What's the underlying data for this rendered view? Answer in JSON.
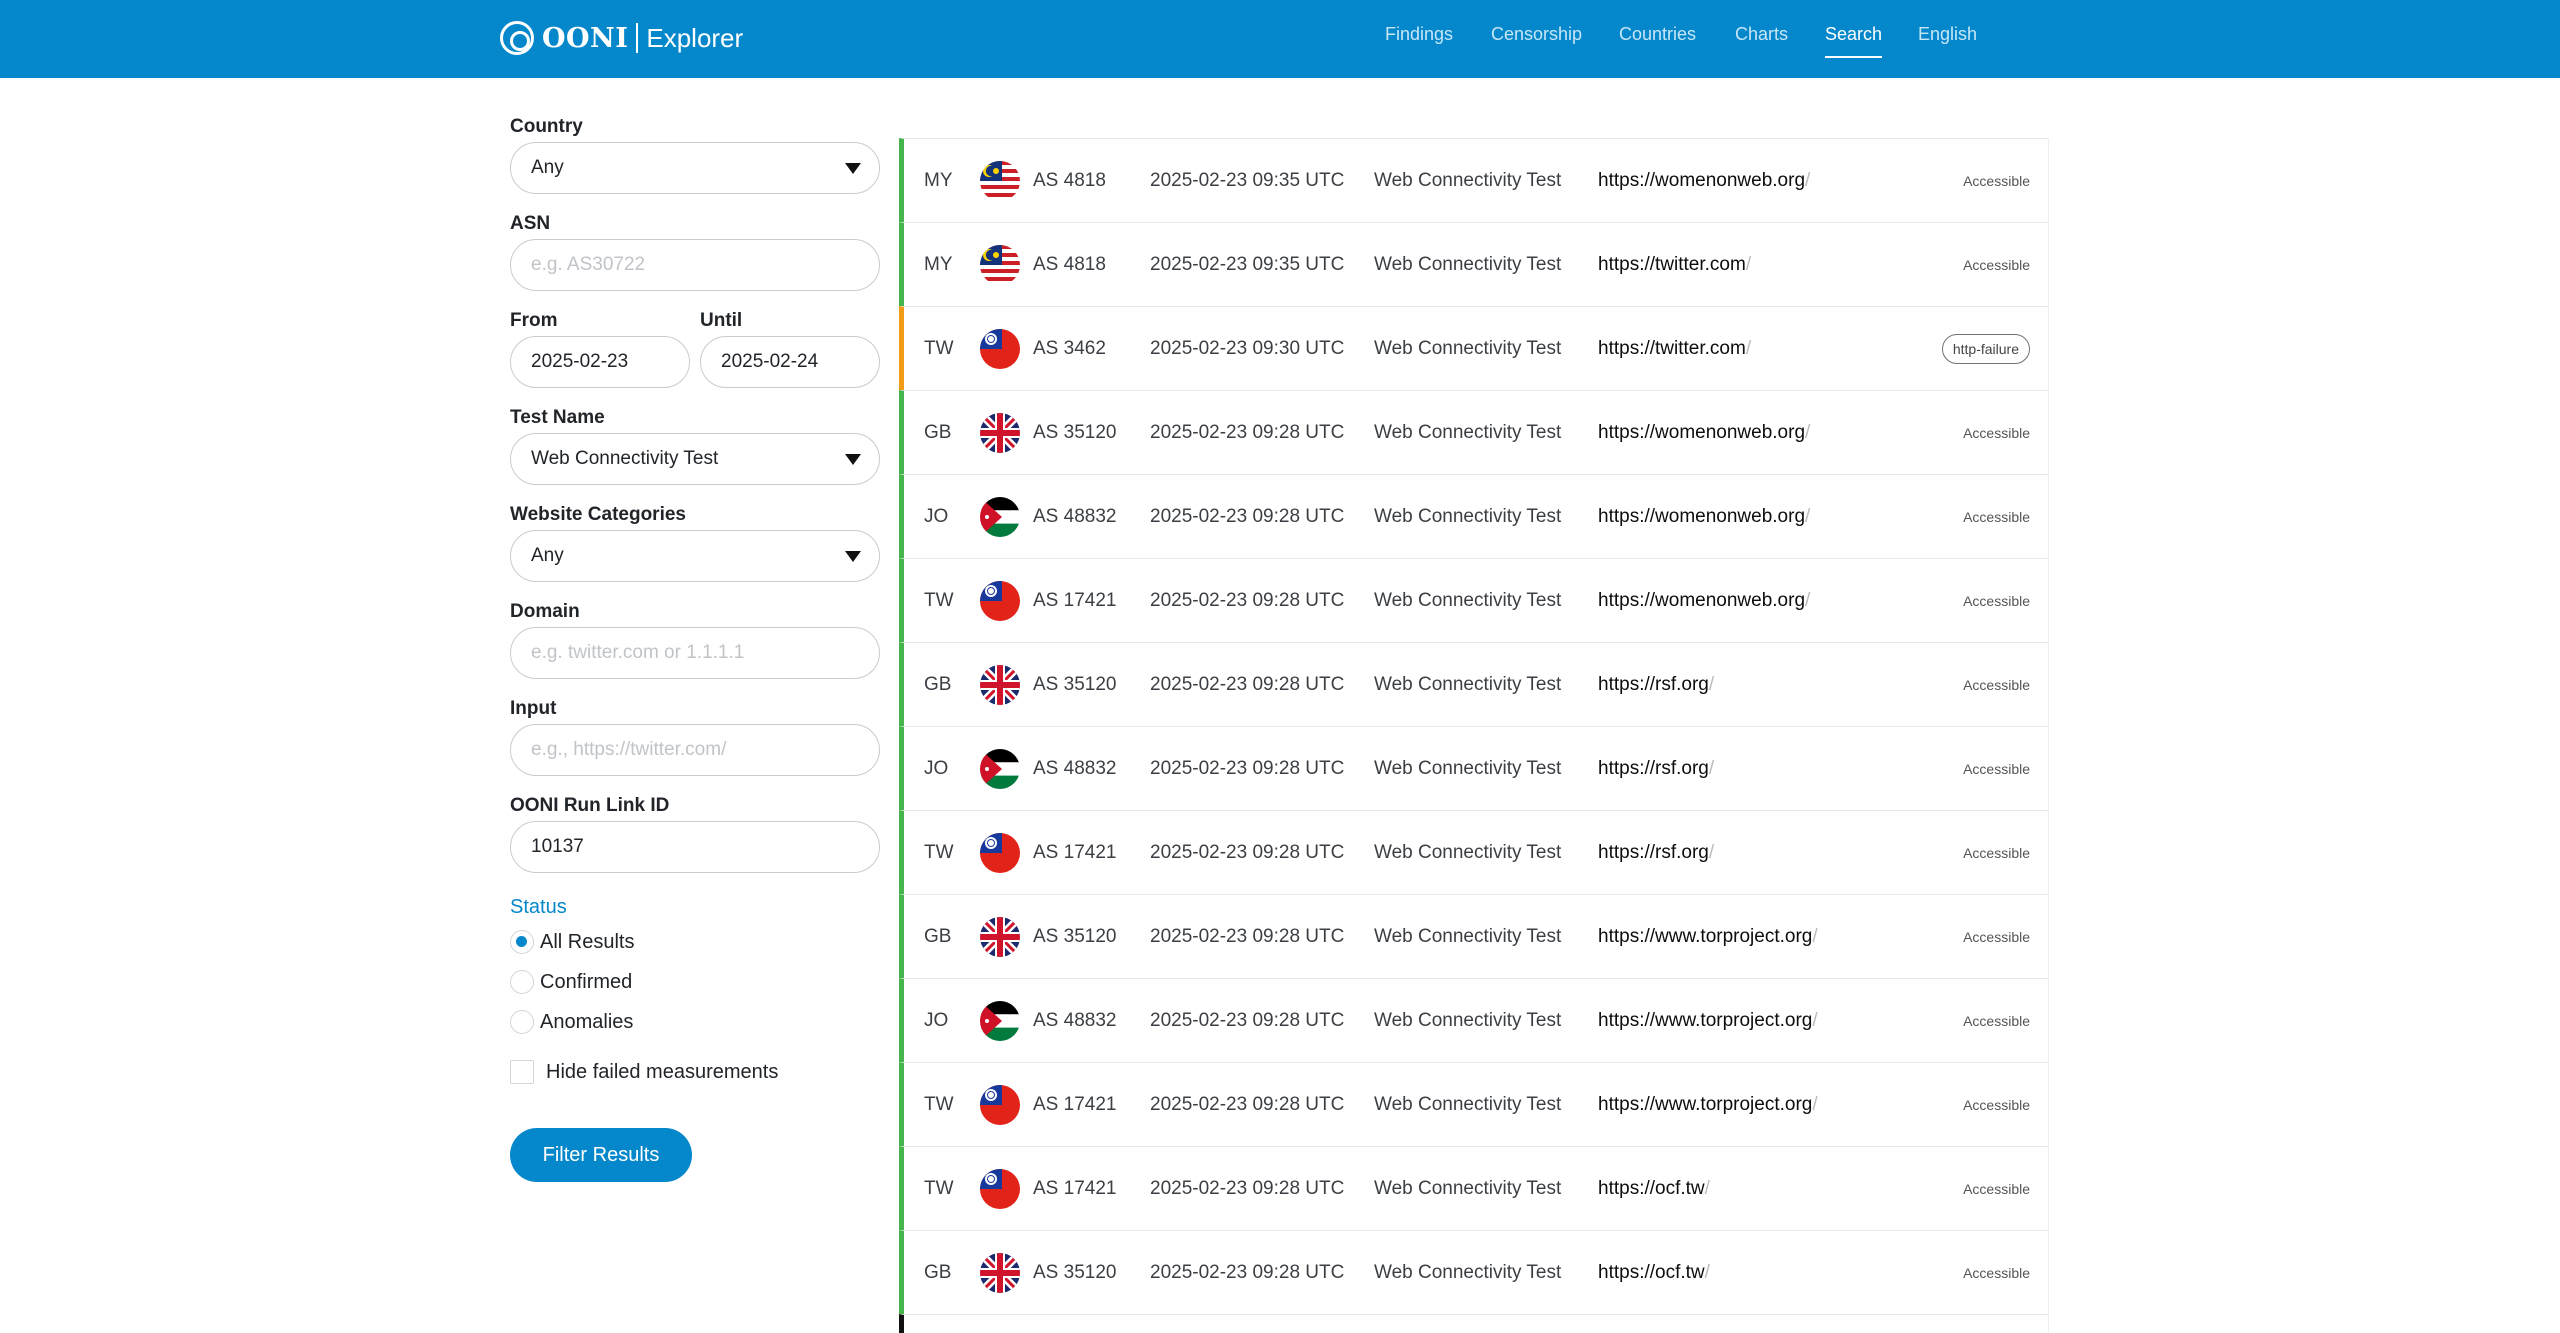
{
  "header": {
    "brand": "OONI",
    "product": "Explorer",
    "nav": [
      {
        "label": "Findings"
      },
      {
        "label": "Censorship"
      },
      {
        "label": "Countries"
      },
      {
        "label": "Charts"
      },
      {
        "label": "Search"
      },
      {
        "label": "English"
      }
    ]
  },
  "filters": {
    "country": {
      "label": "Country",
      "value": "Any"
    },
    "asn": {
      "label": "ASN",
      "placeholder": "e.g. AS30722"
    },
    "from": {
      "label": "From",
      "value": "2025-02-23"
    },
    "until": {
      "label": "Until",
      "value": "2025-02-24"
    },
    "test_name": {
      "label": "Test Name",
      "value": "Web Connectivity Test"
    },
    "website_categories": {
      "label": "Website Categories",
      "value": "Any"
    },
    "domain": {
      "label": "Domain",
      "placeholder": "e.g. twitter.com or 1.1.1.1"
    },
    "input": {
      "label": "Input",
      "placeholder": "e.g., https://twitter.com/"
    },
    "run_link": {
      "label": "OONI Run Link ID",
      "value": "10137"
    },
    "status": {
      "title": "Status",
      "options": [
        {
          "label": "All Results",
          "checked": true
        },
        {
          "label": "Confirmed",
          "checked": false
        },
        {
          "label": "Anomalies",
          "checked": false
        }
      ]
    },
    "hide_failed": {
      "label": "Hide failed measurements",
      "checked": false
    },
    "submit": "Filter Results"
  },
  "results": [
    {
      "cc": "MY",
      "asn": "AS 4818",
      "date": "2025-02-23 09:35 UTC",
      "test": "Web Connectivity Test",
      "url": "https://womenonweb.org",
      "status": "Accessible"
    },
    {
      "cc": "MY",
      "asn": "AS 4818",
      "date": "2025-02-23 09:35 UTC",
      "test": "Web Connectivity Test",
      "url": "https://twitter.com",
      "status": "Accessible"
    },
    {
      "cc": "TW",
      "asn": "AS 3462",
      "date": "2025-02-23 09:30 UTC",
      "test": "Web Connectivity Test",
      "url": "https://twitter.com",
      "status": "http-failure"
    },
    {
      "cc": "GB",
      "asn": "AS 35120",
      "date": "2025-02-23 09:28 UTC",
      "test": "Web Connectivity Test",
      "url": "https://womenonweb.org",
      "status": "Accessible"
    },
    {
      "cc": "JO",
      "asn": "AS 48832",
      "date": "2025-02-23 09:28 UTC",
      "test": "Web Connectivity Test",
      "url": "https://womenonweb.org",
      "status": "Accessible"
    },
    {
      "cc": "TW",
      "asn": "AS 17421",
      "date": "2025-02-23 09:28 UTC",
      "test": "Web Connectivity Test",
      "url": "https://womenonweb.org",
      "status": "Accessible"
    },
    {
      "cc": "GB",
      "asn": "AS 35120",
      "date": "2025-02-23 09:28 UTC",
      "test": "Web Connectivity Test",
      "url": "https://rsf.org",
      "status": "Accessible"
    },
    {
      "cc": "JO",
      "asn": "AS 48832",
      "date": "2025-02-23 09:28 UTC",
      "test": "Web Connectivity Test",
      "url": "https://rsf.org",
      "status": "Accessible"
    },
    {
      "cc": "TW",
      "asn": "AS 17421",
      "date": "2025-02-23 09:28 UTC",
      "test": "Web Connectivity Test",
      "url": "https://rsf.org",
      "status": "Accessible"
    },
    {
      "cc": "GB",
      "asn": "AS 35120",
      "date": "2025-02-23 09:28 UTC",
      "test": "Web Connectivity Test",
      "url": "https://www.torproject.org",
      "status": "Accessible"
    },
    {
      "cc": "JO",
      "asn": "AS 48832",
      "date": "2025-02-23 09:28 UTC",
      "test": "Web Connectivity Test",
      "url": "https://www.torproject.org",
      "status": "Accessible"
    },
    {
      "cc": "TW",
      "asn": "AS 17421",
      "date": "2025-02-23 09:28 UTC",
      "test": "Web Connectivity Test",
      "url": "https://www.torproject.org",
      "status": "Accessible"
    },
    {
      "cc": "TW",
      "asn": "AS 17421",
      "date": "2025-02-23 09:28 UTC",
      "test": "Web Connectivity Test",
      "url": "https://ocf.tw",
      "status": "Accessible"
    },
    {
      "cc": "GB",
      "asn": "AS 35120",
      "date": "2025-02-23 09:28 UTC",
      "test": "Web Connectivity Test",
      "url": "https://ocf.tw",
      "status": "Accessible"
    }
  ]
}
